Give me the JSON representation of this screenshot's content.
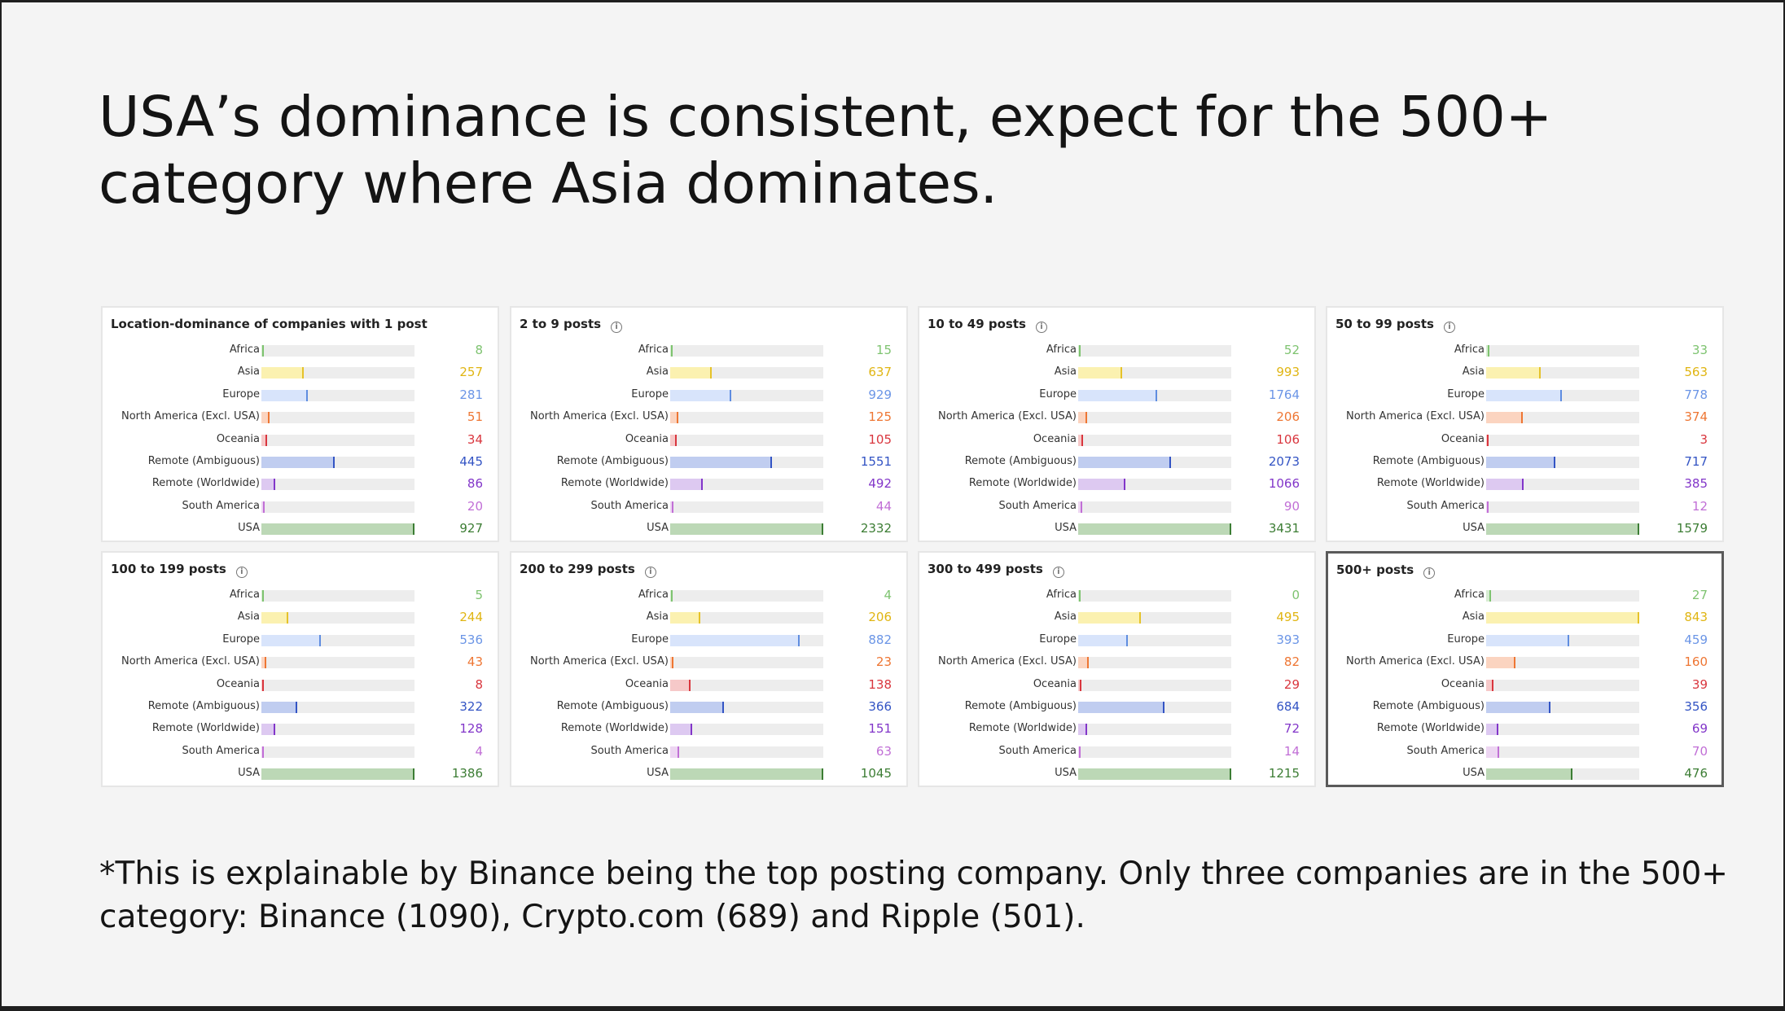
{
  "headline": "USA’s dominance is consistent, expect for the 500+ category where Asia dominates.",
  "footnote": "*This is explainable by Binance being the top posting company. Only three companies are in the 500+ category: Binance (1090), Crypto.com (689) and Ripple (501).",
  "info_icon": "info-circle-icon",
  "colors": {
    "Africa": {
      "fill": "#d7ecd2",
      "tick": "#7ec370",
      "text": "#7ec370"
    },
    "Asia": {
      "fill": "#fbf1b0",
      "tick": "#e5c22a",
      "text": "#e0b512"
    },
    "Europe": {
      "fill": "#d8e4fb",
      "tick": "#5f8de0",
      "text": "#6b95e6"
    },
    "North America (Excl. USA)": {
      "fill": "#fbd4c0",
      "tick": "#ee7633",
      "text": "#ee7633"
    },
    "Oceania": {
      "fill": "#f6c9c9",
      "tick": "#d9363e",
      "text": "#d9363e"
    },
    "Remote (Ambiguous)": {
      "fill": "#c0cdf0",
      "tick": "#3354c4",
      "text": "#3354c4"
    },
    "Remote (Worldwide)": {
      "fill": "#ddc9f1",
      "tick": "#8236c9",
      "text": "#8236c9"
    },
    "South America": {
      "fill": "#edd6f2",
      "tick": "#c16fd6",
      "text": "#c16fd6"
    },
    "USA": {
      "fill": "#bcd8b6",
      "tick": "#3c7d34",
      "text": "#3c7d34"
    }
  },
  "chart_data": [
    {
      "type": "bar",
      "title": "Location-dominance of companies with 1 post",
      "highlight": false,
      "categories": [
        "Africa",
        "Asia",
        "Europe",
        "North America (Excl. USA)",
        "Oceania",
        "Remote (Ambiguous)",
        "Remote (Worldwide)",
        "South America",
        "USA"
      ],
      "values": [
        8,
        257,
        281,
        51,
        34,
        445,
        86,
        20,
        927
      ]
    },
    {
      "type": "bar",
      "title": "2 to 9 posts",
      "highlight": false,
      "categories": [
        "Africa",
        "Asia",
        "Europe",
        "North America (Excl. USA)",
        "Oceania",
        "Remote (Ambiguous)",
        "Remote (Worldwide)",
        "South America",
        "USA"
      ],
      "values": [
        15,
        637,
        929,
        125,
        105,
        1551,
        492,
        44,
        2332
      ]
    },
    {
      "type": "bar",
      "title": "10 to 49 posts",
      "highlight": false,
      "categories": [
        "Africa",
        "Asia",
        "Europe",
        "North America (Excl. USA)",
        "Oceania",
        "Remote (Ambiguous)",
        "Remote (Worldwide)",
        "South America",
        "USA"
      ],
      "values": [
        52,
        993,
        1764,
        206,
        106,
        2073,
        1066,
        90,
        3431
      ]
    },
    {
      "type": "bar",
      "title": "50 to 99 posts",
      "highlight": false,
      "categories": [
        "Africa",
        "Asia",
        "Europe",
        "North America (Excl. USA)",
        "Oceania",
        "Remote (Ambiguous)",
        "Remote (Worldwide)",
        "South America",
        "USA"
      ],
      "values": [
        33,
        563,
        778,
        374,
        3,
        717,
        385,
        12,
        1579
      ]
    },
    {
      "type": "bar",
      "title": "100 to 199 posts",
      "highlight": false,
      "categories": [
        "Africa",
        "Asia",
        "Europe",
        "North America (Excl. USA)",
        "Oceania",
        "Remote (Ambiguous)",
        "Remote (Worldwide)",
        "South America",
        "USA"
      ],
      "values": [
        5,
        244,
        536,
        43,
        8,
        322,
        128,
        4,
        1386
      ]
    },
    {
      "type": "bar",
      "title": "200 to 299 posts",
      "highlight": false,
      "categories": [
        "Africa",
        "Asia",
        "Europe",
        "North America (Excl. USA)",
        "Oceania",
        "Remote (Ambiguous)",
        "Remote (Worldwide)",
        "South America",
        "USA"
      ],
      "values": [
        4,
        206,
        882,
        23,
        138,
        366,
        151,
        63,
        1045
      ]
    },
    {
      "type": "bar",
      "title": "300 to 499 posts",
      "highlight": false,
      "categories": [
        "Africa",
        "Asia",
        "Europe",
        "North America (Excl. USA)",
        "Oceania",
        "Remote (Ambiguous)",
        "Remote (Worldwide)",
        "South America",
        "USA"
      ],
      "values": [
        0,
        495,
        393,
        82,
        29,
        684,
        72,
        14,
        1215
      ]
    },
    {
      "type": "bar",
      "title": "500+ posts",
      "highlight": true,
      "categories": [
        "Africa",
        "Asia",
        "Europe",
        "North America (Excl. USA)",
        "Oceania",
        "Remote (Ambiguous)",
        "Remote (Worldwide)",
        "South America",
        "USA"
      ],
      "values": [
        27,
        843,
        459,
        160,
        39,
        356,
        69,
        70,
        476
      ]
    }
  ]
}
